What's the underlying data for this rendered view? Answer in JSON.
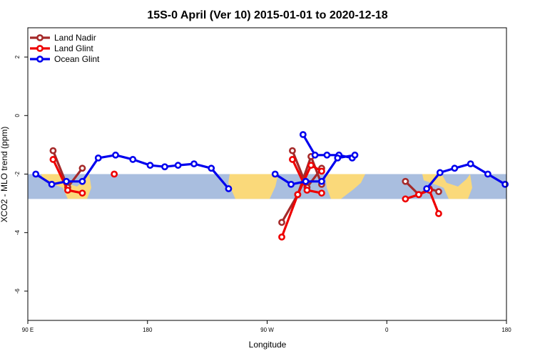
{
  "chart_data": {
    "type": "line",
    "title": "15S-0 April (Ver 10)   2015-01-01 to 2020-12-18",
    "xlabel": "Longitude",
    "ylabel": "XCO2 - MLO trend (ppm)",
    "xlim": [
      90,
      450
    ],
    "ylim": [
      -7,
      3
    ],
    "x_ticks": [
      {
        "value": 90,
        "label": "90 E"
      },
      {
        "value": 180,
        "label": "180"
      },
      {
        "value": 270,
        "label": "90 W"
      },
      {
        "value": 360,
        "label": "0"
      },
      {
        "value": 450,
        "label": "180"
      }
    ],
    "y_ticks": [
      {
        "value": 2,
        "label": "2"
      },
      {
        "value": 0,
        "label": "0"
      },
      {
        "value": -2,
        "label": "-2"
      },
      {
        "value": -4,
        "label": "-4"
      },
      {
        "value": -6,
        "label": "-6"
      }
    ],
    "legend_position": "top-left",
    "latitude_band": {
      "y_top": -2.0,
      "y_bottom": -2.85,
      "ocean_color": "#a9bedf",
      "land_color": "#fad97a"
    },
    "series": [
      {
        "name": "Land Nadir",
        "color": "#a52a2a",
        "segments": [
          [
            {
              "x": 109,
              "y": -1.2
            },
            {
              "x": 120,
              "y": -2.45
            },
            {
              "x": 131,
              "y": -1.8
            }
          ],
          [
            {
              "x": 281,
              "y": -3.65
            },
            {
              "x": 293,
              "y": -2.7
            },
            {
              "x": 303,
              "y": -1.4
            },
            {
              "x": 311,
              "y": -2.35
            }
          ],
          [
            {
              "x": 374,
              "y": -2.25
            },
            {
              "x": 384,
              "y": -2.7
            },
            {
              "x": 392,
              "y": -2.5
            },
            {
              "x": 399,
              "y": -2.6
            }
          ],
          [
            {
              "x": 289,
              "y": -1.2
            },
            {
              "x": 300,
              "y": -2.45
            },
            {
              "x": 311,
              "y": -1.8
            }
          ]
        ]
      },
      {
        "name": "Land Glint",
        "color": "#ee0000",
        "segments": [
          [
            {
              "x": 109,
              "y": -1.5
            },
            {
              "x": 120,
              "y": -2.55
            },
            {
              "x": 131,
              "y": -2.65
            }
          ],
          [
            {
              "x": 155,
              "y": -2.0
            }
          ],
          [
            {
              "x": 281,
              "y": -4.15
            },
            {
              "x": 293,
              "y": -2.7
            },
            {
              "x": 303,
              "y": -1.7
            },
            {
              "x": 311,
              "y": -1.9
            }
          ],
          [
            {
              "x": 374,
              "y": -2.85
            },
            {
              "x": 384,
              "y": -2.7
            },
            {
              "x": 392,
              "y": -2.55
            },
            {
              "x": 399,
              "y": -3.35
            }
          ],
          [
            {
              "x": 289,
              "y": -1.5
            },
            {
              "x": 300,
              "y": -2.55
            },
            {
              "x": 311,
              "y": -2.65
            }
          ]
        ]
      },
      {
        "name": "Ocean Glint",
        "color": "#0000ee",
        "segments": [
          [
            {
              "x": 96,
              "y": -2.0
            },
            {
              "x": 108,
              "y": -2.35
            },
            {
              "x": 119,
              "y": -2.25
            },
            {
              "x": 131,
              "y": -2.25
            },
            {
              "x": 143,
              "y": -1.45
            },
            {
              "x": 156,
              "y": -1.35
            },
            {
              "x": 169,
              "y": -1.5
            },
            {
              "x": 182,
              "y": -1.7
            },
            {
              "x": 193,
              "y": -1.75
            },
            {
              "x": 203,
              "y": -1.7
            },
            {
              "x": 215,
              "y": -1.65
            },
            {
              "x": 228,
              "y": -1.8
            },
            {
              "x": 241,
              "y": -2.5
            }
          ],
          [
            {
              "x": 297,
              "y": -0.65
            },
            {
              "x": 306,
              "y": -1.35
            },
            {
              "x": 315,
              "y": -1.35
            },
            {
              "x": 324,
              "y": -1.35
            },
            {
              "x": 334,
              "y": -1.45
            }
          ],
          [
            {
              "x": 390,
              "y": -2.5
            },
            {
              "x": 400,
              "y": -1.95
            },
            {
              "x": 411,
              "y": -1.8
            },
            {
              "x": 423,
              "y": -1.65
            },
            {
              "x": 436,
              "y": -2.0
            },
            {
              "x": 449,
              "y": -2.35
            }
          ],
          [
            {
              "x": 276,
              "y": -2.0
            },
            {
              "x": 288,
              "y": -2.35
            },
            {
              "x": 299,
              "y": -2.25
            },
            {
              "x": 311,
              "y": -2.25
            },
            {
              "x": 323,
              "y": -1.45
            },
            {
              "x": 336,
              "y": -1.35
            }
          ]
        ]
      }
    ]
  }
}
